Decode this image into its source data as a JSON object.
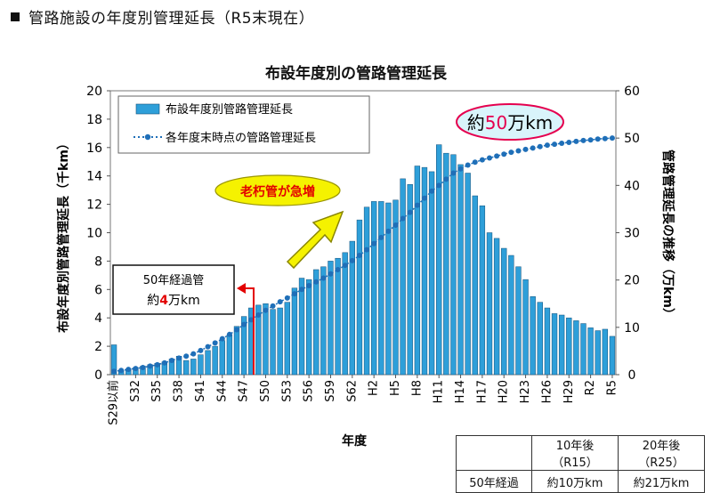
{
  "page": {
    "heading": "管路施設の年度別管理延長（R5末現在）"
  },
  "chart_data": {
    "type": "bar",
    "title": "布設年度別の管路管理延長",
    "xlabel": "年度",
    "ylabel": "布設年度別管路管理延長（千km）",
    "ylabel_right": "管路管理延長の推移（万km）",
    "ylim": [
      0,
      20
    ],
    "ylim_right": [
      0,
      60
    ],
    "yticks": [
      "0",
      "2",
      "4",
      "6",
      "8",
      "10",
      "12",
      "14",
      "16",
      "18",
      "20"
    ],
    "yticks_right": [
      "0",
      "10",
      "20",
      "30",
      "40",
      "50",
      "60"
    ],
    "xtick_labels": [
      "S29以前",
      "S32",
      "S35",
      "S38",
      "S41",
      "S44",
      "S47",
      "S50",
      "S53",
      "S56",
      "S59",
      "S62",
      "H2",
      "H5",
      "H8",
      "H11",
      "H14",
      "H17",
      "H20",
      "H23",
      "H26",
      "H29",
      "R2",
      "R5"
    ],
    "categories": [
      "S29以前",
      "S30",
      "S31",
      "S32",
      "S33",
      "S34",
      "S35",
      "S36",
      "S37",
      "S38",
      "S39",
      "S40",
      "S41",
      "S42",
      "S43",
      "S44",
      "S45",
      "S46",
      "S47",
      "S48",
      "S49",
      "S50",
      "S51",
      "S52",
      "S53",
      "S54",
      "S55",
      "S56",
      "S57",
      "S58",
      "S59",
      "S60",
      "S61",
      "S62",
      "S63",
      "H1",
      "H2",
      "H3",
      "H4",
      "H5",
      "H6",
      "H7",
      "H8",
      "H9",
      "H10",
      "H11",
      "H12",
      "H13",
      "H14",
      "H15",
      "H16",
      "H17",
      "H18",
      "H19",
      "H20",
      "H21",
      "H22",
      "H23",
      "H24",
      "H25",
      "H26",
      "H27",
      "H28",
      "H29",
      "H30",
      "R1",
      "R2",
      "R3",
      "R4",
      "R5"
    ],
    "series": [
      {
        "name": "布設年度別管路管理延長",
        "axis": "left",
        "values": [
          2.1,
          0.3,
          0.4,
          0.5,
          0.6,
          0.7,
          0.8,
          0.9,
          1.1,
          1.3,
          1.0,
          1.1,
          1.4,
          1.7,
          2.0,
          2.4,
          2.8,
          3.4,
          4.1,
          4.7,
          4.9,
          5.0,
          4.6,
          4.7,
          5.1,
          6.1,
          6.8,
          6.7,
          7.4,
          7.6,
          8.0,
          8.2,
          8.6,
          9.4,
          10.9,
          11.8,
          12.2,
          12.2,
          12.1,
          12.3,
          13.8,
          13.4,
          14.7,
          14.6,
          14.3,
          16.2,
          15.6,
          15.5,
          14.8,
          14.2,
          12.6,
          11.9,
          10.0,
          9.6,
          8.9,
          8.4,
          7.6,
          6.7,
          5.5,
          5.1,
          4.7,
          4.3,
          4.2,
          4.0,
          3.8,
          3.6,
          3.3,
          3.1,
          3.2,
          2.7
        ]
      },
      {
        "name": "各年度末時点の管路管理延長",
        "axis": "right",
        "values": [
          0.7,
          0.9,
          1.1,
          1.3,
          1.5,
          1.8,
          2.1,
          2.5,
          3.0,
          3.5,
          3.9,
          4.4,
          5.1,
          5.9,
          6.7,
          7.6,
          8.5,
          9.5,
          10.6,
          11.6,
          12.6,
          13.6,
          14.5,
          15.4,
          16.2,
          17.1,
          18.0,
          18.8,
          19.6,
          20.4,
          21.3,
          22.2,
          23.1,
          24.1,
          25.2,
          26.4,
          27.7,
          29.0,
          30.3,
          31.6,
          33.0,
          34.3,
          35.8,
          37.3,
          38.8,
          40.0,
          41.3,
          42.6,
          43.5,
          44.3,
          44.9,
          45.4,
          45.8,
          46.2,
          46.6,
          47.0,
          47.3,
          47.6,
          47.9,
          48.2,
          48.5,
          48.7,
          48.9,
          49.1,
          49.3,
          49.5,
          49.6,
          49.8,
          49.9,
          50.0
        ]
      }
    ],
    "legend_position": "top-left",
    "grid": false,
    "annotations": {
      "total": {
        "prefix": "約",
        "number": "50",
        "suffix": "万km"
      },
      "increase": "老朽管が急増",
      "over50_line1": "50年経過管",
      "over50_line2_prefix": "約",
      "over50_line2_number": "4",
      "over50_line2_suffix": "万km"
    },
    "colors": {
      "bar": "#2e9fd9",
      "line": "#1f6fb8",
      "highlight_red": "#e5004f",
      "arrow_red": "#e30000",
      "ellipse_fill": "#d9f4fb",
      "callout_yellow": "#f5f200",
      "callout_yellow_stroke": "#9a9600"
    }
  },
  "summary_table": {
    "corner": "",
    "col1": "10年後（R15）",
    "col2": "20年後（R25）",
    "row_label": "50年経過",
    "val1": "約10万km",
    "val2": "約21万km"
  }
}
